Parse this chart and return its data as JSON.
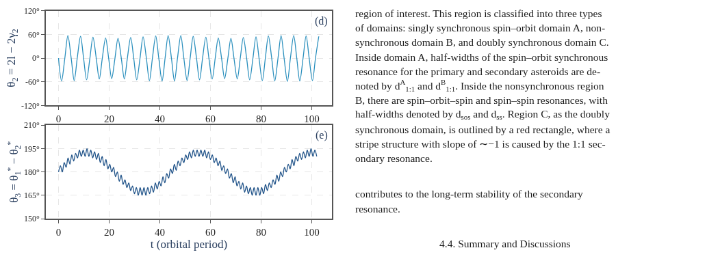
{
  "chart_data": [
    {
      "type": "line",
      "ylabel": "θ$_{2}$ = 2l − 2γ$_{2}$",
      "annotations": [
        "(d)"
      ],
      "xlim": [
        -5,
        108
      ],
      "xticks": [
        0,
        20,
        40,
        60,
        80,
        100
      ],
      "ylim": [
        -120,
        120
      ],
      "yticks": [
        {
          "value": -120,
          "label": "-120°"
        },
        {
          "value": -60,
          "label": "-60°"
        },
        {
          "value": 0,
          "label": "0°"
        },
        {
          "value": 60,
          "label": "60°"
        },
        {
          "value": 120,
          "label": "120°"
        }
      ],
      "grid": true,
      "line_style": "solid",
      "series": [
        {
          "color": "#2a8fbd",
          "x": [
            0,
            1.2,
            2.5,
            3.7,
            5.0,
            6.2,
            7.4,
            8.7,
            9.9,
            11.1,
            12.4,
            13.6,
            14.9,
            16.1,
            17.3,
            18.6,
            19.8,
            21.0,
            22.3,
            23.5,
            24.8,
            26.0,
            27.2,
            28.5,
            29.7,
            30.9,
            32.2,
            33.4,
            34.7,
            35.9,
            37.1,
            38.4,
            39.6,
            40.9,
            42.1,
            43.3,
            44.6,
            45.8,
            47.0,
            48.3,
            49.5,
            50.8,
            52.0,
            53.2,
            54.5,
            55.7,
            56.9,
            58.2,
            59.4,
            60.7,
            61.9,
            63.1,
            64.4,
            65.6,
            66.9,
            68.1,
            69.3,
            70.6,
            71.8,
            73.0,
            74.3,
            75.5,
            76.8,
            78.0,
            79.2,
            80.5,
            81.7,
            82.9,
            84.2,
            85.4,
            86.7,
            87.9,
            89.1,
            90.4,
            91.6,
            92.9,
            94.1,
            95.3,
            96.6,
            97.8,
            99.0,
            100.3,
            101.5,
            102.8
          ],
          "values": [
            0,
            -58,
            0,
            57,
            0,
            -57,
            0,
            55,
            0,
            -55,
            0,
            53,
            0,
            -53,
            0,
            51,
            0,
            -52,
            0,
            50,
            0,
            -53,
            0,
            52,
            0,
            -55,
            0,
            54,
            0,
            -57,
            0,
            56,
            0,
            -58,
            0,
            57,
            0,
            -58,
            0,
            57,
            0,
            -57,
            0,
            55,
            0,
            -55,
            0,
            53,
            0,
            -53,
            0,
            51,
            0,
            -52,
            0,
            50,
            0,
            -53,
            0,
            52,
            0,
            -55,
            0,
            54,
            0,
            -57,
            0,
            56,
            0,
            -58,
            0,
            57,
            0,
            -59,
            0,
            57,
            0,
            -58,
            0,
            56,
            0,
            -57,
            0,
            55
          ]
        }
      ]
    },
    {
      "type": "line",
      "xlabel": "t (orbital period)",
      "ylabel": "θ$_{3}$ = θ$_{1}$$^{*}$ − θ$_{2}$$^{*}$",
      "annotations": [
        "(e)"
      ],
      "xlim": [
        -5,
        108
      ],
      "xticks": [
        0,
        20,
        40,
        60,
        80,
        100
      ],
      "ylim": [
        150,
        210
      ],
      "yticks": [
        {
          "value": 150,
          "label": "150°"
        },
        {
          "value": 165,
          "label": "165°"
        },
        {
          "value": 180,
          "label": "180°"
        },
        {
          "value": 195,
          "label": "195°"
        },
        {
          "value": 210,
          "label": "210°"
        }
      ],
      "grid": true,
      "line_style": "solid",
      "series": [
        {
          "color": "#1f5288",
          "x": [
            0,
            0.75,
            1.5,
            2.25,
            3,
            3.75,
            4.5,
            5.25,
            6,
            6.75,
            7.5,
            8.25,
            9,
            9.75,
            10.5,
            11.25,
            12,
            12.75,
            13.5,
            14.25,
            15,
            15.75,
            16.5,
            17.25,
            18,
            18.75,
            19.5,
            20.25,
            21,
            21.75,
            22.5,
            23.25,
            24,
            24.75,
            25.5,
            26.25,
            27,
            27.75,
            28.5,
            29.25,
            30,
            30.75,
            31.5,
            32.25,
            33,
            33.75,
            34.5,
            35.25,
            36,
            36.75,
            37.5,
            38.25,
            39,
            39.75,
            40.5,
            41.25,
            42,
            42.75,
            43.5,
            44.25,
            45,
            45.75,
            46.5,
            47.25,
            48,
            48.75,
            49.5,
            50.25,
            51,
            51.75,
            52.5,
            53.25,
            54,
            54.75,
            55.5,
            56.25,
            57,
            57.75,
            58.5,
            59.25,
            60,
            60.75,
            61.5,
            62.25,
            63,
            63.75,
            64.5,
            65.25,
            66,
            66.75,
            67.5,
            68.25,
            69,
            69.75,
            70.5,
            71.25,
            72,
            72.75,
            73.5,
            74.25,
            75,
            75.75,
            76.5,
            77.25,
            78,
            78.75,
            79.5,
            80.25,
            81,
            81.75,
            82.5,
            83.25,
            84,
            84.75,
            85.5,
            86.25,
            87,
            87.75,
            88.5,
            89.25,
            90,
            90.75,
            91.5,
            92.25,
            93,
            93.75,
            94.5,
            95.25,
            96,
            96.75,
            97.5,
            98.25,
            99,
            99.75,
            100.5,
            101.25,
            102
          ],
          "values": [
            180,
            184,
            180,
            186,
            183,
            189,
            185,
            191,
            187,
            192,
            189,
            194,
            190,
            194,
            190,
            195,
            190,
            194,
            189,
            193,
            188,
            192,
            186,
            190,
            184,
            188,
            182,
            185,
            180,
            183,
            177,
            180,
            174,
            178,
            172,
            175,
            170,
            173,
            168,
            171,
            166,
            170,
            165,
            170,
            165,
            170,
            165,
            170,
            166,
            171,
            167,
            173,
            169,
            174,
            171,
            177,
            173,
            179,
            176,
            182,
            179,
            185,
            181,
            187,
            184,
            189,
            186,
            191,
            188,
            193,
            189,
            194,
            190,
            194,
            190,
            194,
            190,
            194,
            189,
            193,
            188,
            191,
            186,
            189,
            184,
            187,
            181,
            184,
            179,
            182,
            176,
            179,
            173,
            177,
            171,
            174,
            169,
            173,
            167,
            171,
            166,
            170,
            165,
            170,
            165,
            170,
            165,
            170,
            166,
            172,
            168,
            173,
            170,
            175,
            172,
            178,
            174,
            180,
            177,
            183,
            180,
            185,
            182,
            188,
            184,
            190,
            187,
            192,
            188,
            193,
            189,
            194,
            190,
            195,
            190,
            194,
            190
          ]
        }
      ]
    },
    {
      "type": "other",
      "annotations": [
        "region of interest. This region is classified into three types",
        "of domains: singly synchronous spin–orbit domain A, non-",
        "synchronous domain B, and doubly synchronous domain C.",
        "Inside domain A, half-widths of the spin–orbit synchronous",
        "resonance for the primary and secondary asteroids are de-",
        "noted by d$^{A}$$_{1:1}$ and d$^{B}$$_{1:1}$. Inside the nonsynchronous region",
        "B, there are spin–orbit–spin and spin–spin resonances, with",
        "half-widths denoted by d$_{sos}$ and d$_{ss}$. Region C, as the doubly",
        "synchronous domain, is outlined by a red rectangle, where a",
        "stripe structure with slope of ∼−1 is caused by the 1:1 sec-",
        "ondary resonance.",
        "contributes to the long-term stability of the secondary",
        "resonance.",
        "4.4. Summary and Discussions"
      ]
    }
  ]
}
